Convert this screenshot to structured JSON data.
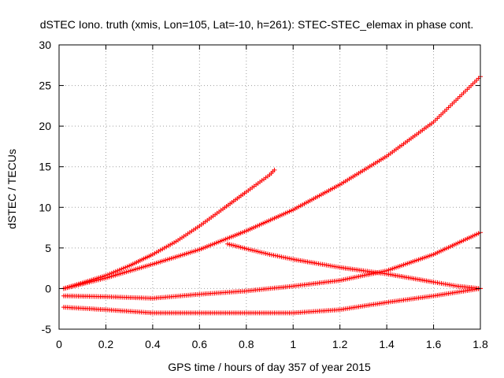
{
  "chart_data": {
    "type": "scatter",
    "title": "dSTEC Iono. truth (xmis, Lon=105, Lat=-10, h=261): STEC-STEC_elemax in phase cont.",
    "xlabel": "GPS time / hours of day 357 of year 2015",
    "ylabel": "dSTEC  / TECUs",
    "xlim": [
      0,
      1.8
    ],
    "ylim": [
      -5,
      30
    ],
    "x_ticks": [
      0,
      0.2,
      0.4,
      0.6,
      0.8,
      1,
      1.2,
      1.4,
      1.6,
      1.8
    ],
    "x_tick_labels": [
      "0",
      "0.2",
      "0.4",
      "0.6",
      "0.8",
      "1",
      "1.2",
      "1.4",
      "1.6",
      "1.8"
    ],
    "y_ticks": [
      -5,
      0,
      5,
      10,
      15,
      20,
      25,
      30
    ],
    "y_tick_labels": [
      "-5",
      "0",
      "5",
      "10",
      "15",
      "20",
      "25",
      "30"
    ],
    "grid": true,
    "marker": "plus",
    "marker_color": "#ff0000",
    "series": [
      {
        "x": [
          0.02,
          0.1,
          0.2,
          0.3,
          0.4,
          0.5,
          0.6,
          0.7,
          0.8,
          0.9,
          0.92
        ],
        "y": [
          0.0,
          0.7,
          1.6,
          2.8,
          4.2,
          5.8,
          7.7,
          9.8,
          11.9,
          14.0,
          14.6
        ]
      },
      {
        "x": [
          0.02,
          0.2,
          0.4,
          0.6,
          0.8,
          1.0,
          1.2,
          1.4,
          1.6,
          1.8
        ],
        "y": [
          0.0,
          1.3,
          3.0,
          4.8,
          7.1,
          9.7,
          12.8,
          16.3,
          20.5,
          26.1
        ]
      },
      {
        "x": [
          0.72,
          0.8,
          0.9,
          1.0,
          1.1,
          1.2,
          1.3,
          1.4,
          1.5,
          1.6,
          1.7,
          1.8
        ],
        "y": [
          5.5,
          4.9,
          4.2,
          3.6,
          3.1,
          2.6,
          2.2,
          1.8,
          1.3,
          0.8,
          0.3,
          0.0
        ]
      },
      {
        "x": [
          0.02,
          0.2,
          0.4,
          0.6,
          0.8,
          1.0,
          1.2,
          1.4,
          1.6,
          1.8
        ],
        "y": [
          -0.9,
          -1.0,
          -1.2,
          -0.7,
          -0.3,
          0.3,
          1.0,
          2.2,
          4.2,
          6.9
        ]
      },
      {
        "x": [
          0.02,
          0.2,
          0.4,
          0.6,
          0.8,
          1.0,
          1.2,
          1.4,
          1.6,
          1.8
        ],
        "y": [
          -2.3,
          -2.6,
          -3.0,
          -3.0,
          -3.0,
          -3.0,
          -2.6,
          -1.7,
          -0.9,
          0.0
        ]
      }
    ]
  }
}
